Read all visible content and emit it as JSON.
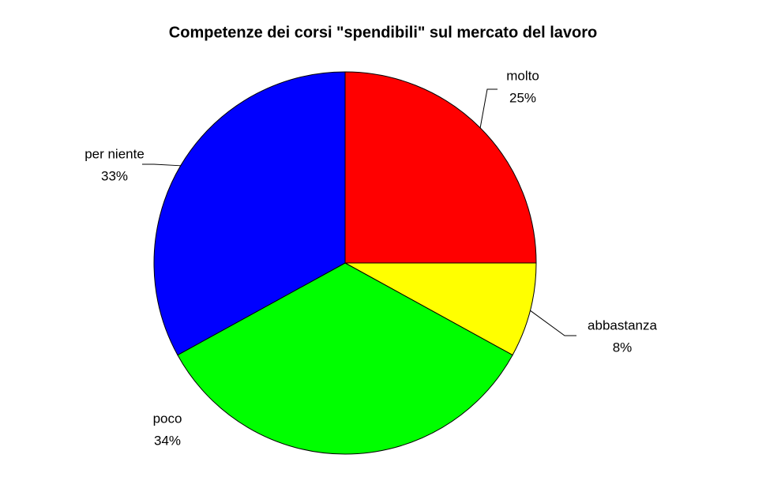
{
  "chart_data": {
    "type": "pie",
    "title": "Competenze dei corsi \"spendibili\" sul mercato del lavoro",
    "categories": [
      "molto",
      "abbastanza",
      "poco",
      "per niente"
    ],
    "values": [
      25,
      8,
      34,
      33
    ],
    "value_labels": [
      "25%",
      "8%",
      "34%",
      "33%"
    ],
    "colors": [
      "#ff0000",
      "#ffff00",
      "#00ff00",
      "#0000ff"
    ]
  }
}
